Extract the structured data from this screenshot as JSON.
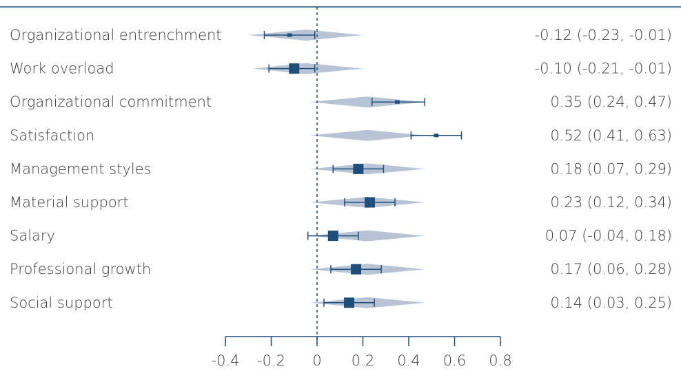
{
  "chart_data": {
    "type": "forest",
    "xlim": [
      -0.4,
      0.8
    ],
    "ticks": [
      "-0.4",
      "-0.2",
      "0",
      "0.2",
      "0.4",
      "0.6",
      "0.8"
    ],
    "reference_line": 0,
    "colors": {
      "marker": "#1f4e79",
      "violin": "#b8c4d6",
      "axis": "#1f4e79",
      "ref_line": "#1f4e79"
    },
    "rows": [
      {
        "label": "Organizational entrenchment",
        "estimate": -0.12,
        "lower": -0.23,
        "upper": -0.01,
        "ci_text": "-0.12 (-0.23, -0.01)",
        "marker_weight": 0.5,
        "violin_from": -0.3,
        "violin_to": 0.2,
        "violin_peak": -0.05
      },
      {
        "label": "Work overload",
        "estimate": -0.1,
        "lower": -0.21,
        "upper": -0.01,
        "ci_text": "-0.10 (-0.21, -0.01)",
        "marker_weight": 1.0,
        "violin_from": -0.28,
        "violin_to": 0.2,
        "violin_peak": -0.05
      },
      {
        "label": "Organizational commitment",
        "estimate": 0.35,
        "lower": 0.24,
        "upper": 0.47,
        "ci_text": "0.35 (0.24, 0.47)",
        "marker_weight": 0.5,
        "violin_from": -0.03,
        "violin_to": 0.47,
        "violin_peak": 0.22
      },
      {
        "label": "Satisfaction",
        "estimate": 0.52,
        "lower": 0.41,
        "upper": 0.63,
        "ci_text": "0.52 (0.41, 0.63)",
        "marker_weight": 0.5,
        "violin_from": -0.03,
        "violin_to": 0.47,
        "violin_peak": 0.22
      },
      {
        "label": "Management styles",
        "estimate": 0.18,
        "lower": 0.07,
        "upper": 0.29,
        "ci_text": "0.18 (0.07, 0.29)",
        "marker_weight": 1.0,
        "violin_from": -0.03,
        "violin_to": 0.47,
        "violin_peak": 0.22
      },
      {
        "label": "Material support",
        "estimate": 0.23,
        "lower": 0.12,
        "upper": 0.34,
        "ci_text": "0.23 (0.12, 0.34)",
        "marker_weight": 1.0,
        "violin_from": -0.03,
        "violin_to": 0.47,
        "violin_peak": 0.22
      },
      {
        "label": "Salary",
        "estimate": 0.07,
        "lower": -0.04,
        "upper": 0.18,
        "ci_text": "0.07 (-0.04, 0.18)",
        "marker_weight": 1.0,
        "violin_from": -0.03,
        "violin_to": 0.47,
        "violin_peak": 0.22
      },
      {
        "label": "Professional growth",
        "estimate": 0.17,
        "lower": 0.06,
        "upper": 0.28,
        "ci_text": "0.17 (0.06, 0.28)",
        "marker_weight": 1.0,
        "violin_from": -0.03,
        "violin_to": 0.47,
        "violin_peak": 0.22
      },
      {
        "label": "Social support",
        "estimate": 0.14,
        "lower": 0.03,
        "upper": 0.25,
        "ci_text": "0.14 (0.03, 0.25)",
        "marker_weight": 1.0,
        "violin_from": -0.03,
        "violin_to": 0.47,
        "violin_peak": 0.22
      }
    ]
  }
}
